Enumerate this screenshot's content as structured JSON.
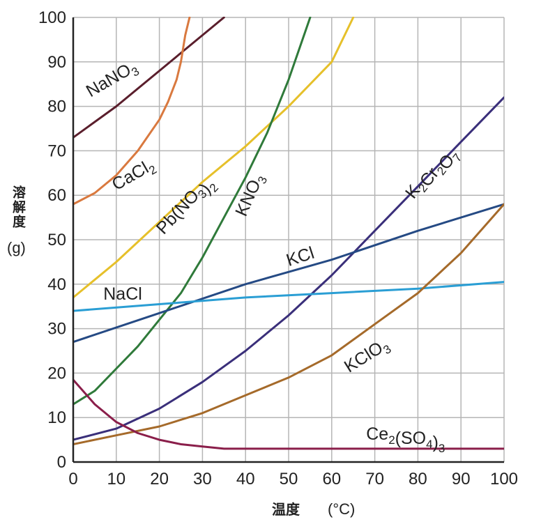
{
  "chart_data": {
    "type": "line",
    "ylabel": "溶解度",
    "ylabel_unit": "(g)",
    "xlabel": "温度",
    "xlabel_unit": "(°C)",
    "xlim": [
      0,
      100
    ],
    "ylim": [
      0,
      100
    ],
    "x_ticks": [
      "0",
      "10",
      "20",
      "30",
      "40",
      "50",
      "60",
      "70",
      "80",
      "90",
      "100"
    ],
    "y_ticks": [
      "0",
      "10",
      "20",
      "30",
      "40",
      "50",
      "60",
      "70",
      "80",
      "90",
      "100"
    ],
    "grid": true,
    "series": [
      {
        "name": "NaNO3",
        "label_parts": [
          [
            "NaNO",
            ""
          ],
          [
            "3",
            "sub"
          ]
        ],
        "color": "#5a1e2c",
        "points": [
          [
            0,
            73
          ],
          [
            10,
            80
          ],
          [
            20,
            88
          ],
          [
            30,
            96
          ],
          [
            35,
            100
          ]
        ]
      },
      {
        "name": "CaCl2",
        "label_parts": [
          [
            "CaCl",
            ""
          ],
          [
            "2",
            "sub"
          ]
        ],
        "color": "#d9793f",
        "points": [
          [
            0,
            58
          ],
          [
            5,
            60.5
          ],
          [
            10,
            64.5
          ],
          [
            15,
            70
          ],
          [
            20,
            77
          ],
          [
            22,
            81
          ],
          [
            24,
            86
          ],
          [
            25,
            90
          ],
          [
            26,
            96
          ],
          [
            27,
            100
          ]
        ]
      },
      {
        "name": "Pb(NO3)2",
        "label_parts": [
          [
            "Pb(NO",
            ""
          ],
          [
            "3",
            "sub"
          ],
          [
            ")",
            ""
          ],
          [
            "2",
            "sub"
          ]
        ],
        "color": "#e6c02a",
        "points": [
          [
            0,
            37
          ],
          [
            10,
            45
          ],
          [
            20,
            54
          ],
          [
            30,
            63
          ],
          [
            40,
            71
          ],
          [
            50,
            80
          ],
          [
            60,
            90
          ],
          [
            65,
            100
          ]
        ]
      },
      {
        "name": "KNO3",
        "label_parts": [
          [
            "KNO",
            ""
          ],
          [
            "3",
            "sub"
          ]
        ],
        "color": "#2f7a3a",
        "points": [
          [
            0,
            13
          ],
          [
            5,
            16
          ],
          [
            10,
            21
          ],
          [
            15,
            26
          ],
          [
            20,
            32
          ],
          [
            25,
            38
          ],
          [
            30,
            46
          ],
          [
            35,
            55
          ],
          [
            40,
            64
          ],
          [
            45,
            74
          ],
          [
            50,
            86
          ],
          [
            55,
            100
          ]
        ]
      },
      {
        "name": "K2Cr2O7",
        "label_parts": [
          [
            "K",
            ""
          ],
          [
            "2",
            "sub"
          ],
          [
            "Cr",
            ""
          ],
          [
            "2",
            "sub"
          ],
          [
            "O",
            ""
          ],
          [
            "7",
            "sub"
          ]
        ],
        "color": "#3a2f7a",
        "points": [
          [
            0,
            5
          ],
          [
            10,
            7.5
          ],
          [
            20,
            12
          ],
          [
            30,
            18
          ],
          [
            40,
            25
          ],
          [
            50,
            33
          ],
          [
            60,
            42
          ],
          [
            70,
            52
          ],
          [
            80,
            62
          ],
          [
            90,
            72
          ],
          [
            100,
            82
          ]
        ]
      },
      {
        "name": "KCl",
        "label_parts": [
          [
            "KCl",
            ""
          ]
        ],
        "color": "#254a84",
        "points": [
          [
            0,
            27
          ],
          [
            20,
            33.5
          ],
          [
            40,
            40
          ],
          [
            60,
            45.5
          ],
          [
            80,
            52
          ],
          [
            100,
            58
          ]
        ]
      },
      {
        "name": "NaCl",
        "label_parts": [
          [
            "NaCl",
            ""
          ]
        ],
        "color": "#2a9ed4",
        "points": [
          [
            0,
            34
          ],
          [
            20,
            35.5
          ],
          [
            40,
            37
          ],
          [
            60,
            38
          ],
          [
            80,
            39
          ],
          [
            100,
            40.5
          ]
        ]
      },
      {
        "name": "KClO3",
        "label_parts": [
          [
            "KClO",
            ""
          ],
          [
            "3",
            "sub"
          ]
        ],
        "color": "#a56a2a",
        "points": [
          [
            0,
            4
          ],
          [
            10,
            6
          ],
          [
            20,
            8
          ],
          [
            30,
            11
          ],
          [
            40,
            15
          ],
          [
            50,
            19
          ],
          [
            60,
            24
          ],
          [
            70,
            31
          ],
          [
            80,
            38
          ],
          [
            90,
            47
          ],
          [
            100,
            58
          ]
        ]
      },
      {
        "name": "Ce2(SO4)3",
        "label_parts": [
          [
            "Ce",
            ""
          ],
          [
            "2",
            "sub"
          ],
          [
            "(SO",
            ""
          ],
          [
            "4",
            "sub"
          ],
          [
            ")",
            ""
          ],
          [
            "3",
            "sub"
          ]
        ],
        "color": "#8a1e4a",
        "points": [
          [
            0,
            18.5
          ],
          [
            5,
            13
          ],
          [
            10,
            9
          ],
          [
            15,
            6.5
          ],
          [
            20,
            5
          ],
          [
            25,
            4
          ],
          [
            30,
            3.5
          ],
          [
            35,
            3
          ],
          [
            100,
            3
          ]
        ]
      }
    ]
  }
}
